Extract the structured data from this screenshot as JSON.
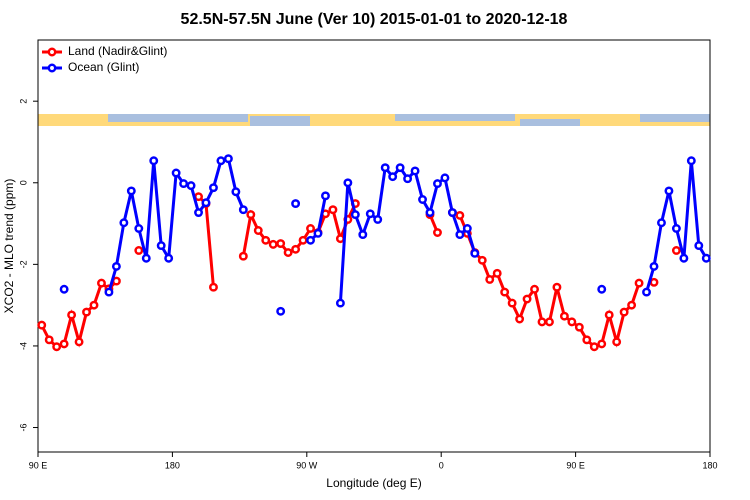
{
  "chart_data": {
    "type": "line",
    "title": "52.5N-57.5N June (Ver 10)   2015-01-01 to 2020-12-18",
    "x_label": "Longitude (deg E)",
    "y_label": "XCO2 - MLO trend (ppm)",
    "x": [
      92.5,
      97.5,
      102.5,
      107.5,
      112.5,
      117.5,
      122.5,
      127.5,
      132.5,
      137.5,
      142.5,
      147.5,
      152.5,
      157.5,
      162.5,
      167.5,
      172.5,
      177.5,
      182.5,
      187.5,
      192.5,
      197.5,
      202.5,
      207.5,
      212.5,
      217.5,
      222.5,
      227.5,
      232.5,
      237.5,
      242.5,
      247.5,
      252.5,
      257.5,
      262.5,
      267.5,
      272.5,
      277.5,
      282.5,
      287.5,
      292.5,
      297.5,
      302.5,
      307.5,
      312.5,
      317.5,
      322.5,
      327.5,
      332.5,
      337.5,
      342.5,
      347.5,
      352.5,
      357.5,
      362.5,
      367.5,
      372.5,
      377.5,
      382.5,
      387.5,
      392.5,
      397.5,
      402.5,
      407.5,
      412.5,
      417.5,
      422.5,
      427.5,
      432.5,
      437.5,
      442.5,
      447.5,
      452.5,
      457.5,
      462.5,
      467.5,
      472.5,
      477.5,
      482.5,
      487.5,
      492.5,
      497.5,
      502.5,
      507.5,
      512.5,
      517.5,
      522.5,
      527.5,
      532.5,
      537.5
    ],
    "series": [
      {
        "name": "Land (Nadir&Glint)",
        "color": "#ff0000",
        "values": [
          -3.49,
          -3.85,
          -4.02,
          -3.95,
          -3.24,
          -3.9,
          -3.17,
          -3.0,
          -2.46,
          -2.6,
          -2.41,
          null,
          null,
          -1.66,
          null,
          null,
          null,
          null,
          null,
          null,
          null,
          -0.34,
          -0.51,
          -2.56,
          null,
          null,
          null,
          -1.8,
          -0.78,
          -1.17,
          -1.41,
          -1.51,
          -1.49,
          -1.71,
          -1.63,
          -1.41,
          -1.12,
          -1.22,
          -0.76,
          -0.66,
          -1.37,
          -0.9,
          -0.51,
          null,
          null,
          null,
          null,
          null,
          null,
          null,
          null,
          null,
          -0.78,
          -1.22,
          null,
          -0.73,
          -0.8,
          -1.24,
          -1.71,
          -1.9,
          -2.37,
          -2.22,
          -2.68,
          -2.95,
          -3.34,
          -2.85,
          -2.61,
          -3.41,
          -3.41,
          -2.56,
          -3.27,
          -3.41,
          -3.54,
          -3.85,
          -4.02,
          -3.95,
          -3.24,
          -3.9,
          -3.17,
          -3.0,
          -2.46,
          null,
          -2.44,
          null,
          null,
          -1.66,
          null,
          null,
          null,
          null
        ]
      },
      {
        "name": "Ocean (Glint)",
        "color": "#0000ff",
        "values": [
          null,
          null,
          null,
          -2.61,
          null,
          null,
          null,
          null,
          null,
          -2.68,
          -2.05,
          -0.98,
          -0.2,
          -1.12,
          -1.85,
          0.54,
          -1.54,
          -1.85,
          0.24,
          -0.02,
          -0.07,
          -0.73,
          -0.49,
          -0.12,
          0.54,
          0.59,
          -0.22,
          -0.66,
          null,
          null,
          null,
          null,
          -3.15,
          null,
          -0.51,
          null,
          -1.41,
          -1.24,
          -0.32,
          null,
          -2.95,
          0,
          -0.78,
          -1.27,
          -0.76,
          -0.9,
          0.37,
          0.15,
          0.37,
          0.1,
          0.29,
          -0.41,
          -0.73,
          -0.02,
          0.12,
          -0.73,
          -1.27,
          -1.12,
          -1.73,
          null,
          null,
          null,
          null,
          null,
          null,
          null,
          null,
          null,
          null,
          null,
          null,
          null,
          null,
          null,
          null,
          -2.61,
          null,
          null,
          null,
          null,
          null,
          -2.68,
          -2.05,
          -0.98,
          -0.2,
          -1.12,
          -1.85,
          0.54,
          -1.54,
          -1.85
        ]
      }
    ],
    "xlim": [
      90,
      540
    ],
    "xticks": [
      {
        "value": 90,
        "label": "90 E"
      },
      {
        "value": 180,
        "label": "180"
      },
      {
        "value": 270,
        "label": "90 W"
      },
      {
        "value": 360,
        "label": "0"
      },
      {
        "value": 450,
        "label": "90 E"
      },
      {
        "value": 540,
        "label": "180"
      }
    ],
    "ylim": [
      -6.6,
      3.5
    ],
    "yticks": [
      -6,
      -4,
      -2,
      0,
      2
    ],
    "legend": "top-left"
  }
}
